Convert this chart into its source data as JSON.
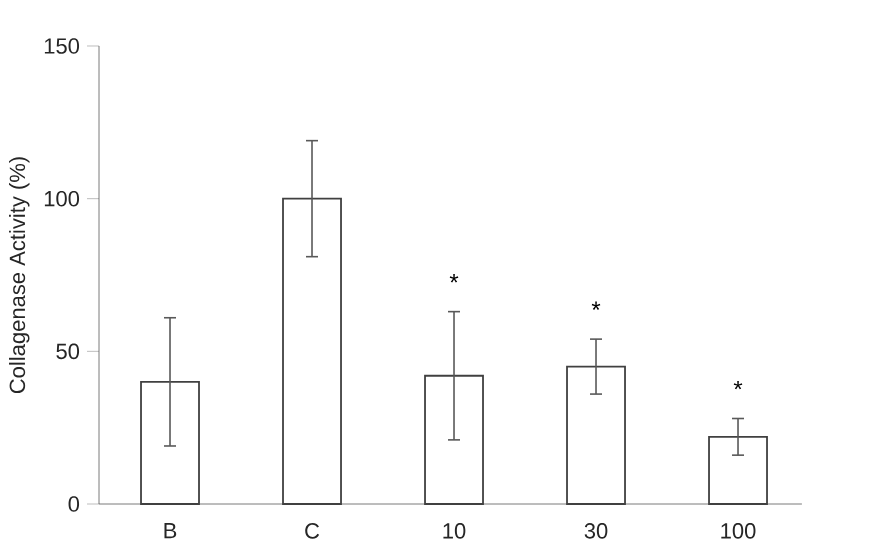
{
  "chart_data": {
    "type": "bar",
    "ylabel": "Collagenase Activity (%)",
    "categories": [
      "B",
      "C",
      "10",
      "30",
      "100"
    ],
    "values": [
      40,
      100,
      42,
      45,
      22
    ],
    "errors": [
      21,
      19,
      21,
      9,
      6
    ],
    "color": "#ffffff",
    "ylim": [
      0,
      150
    ],
    "yticks": [
      0,
      50,
      100,
      150
    ],
    "annotations": [
      {
        "text": "*",
        "x": "10",
        "y": 63
      },
      {
        "text": "*",
        "x": "30",
        "y": 54
      },
      {
        "text": "*",
        "x": "100",
        "y": 28
      }
    ]
  }
}
